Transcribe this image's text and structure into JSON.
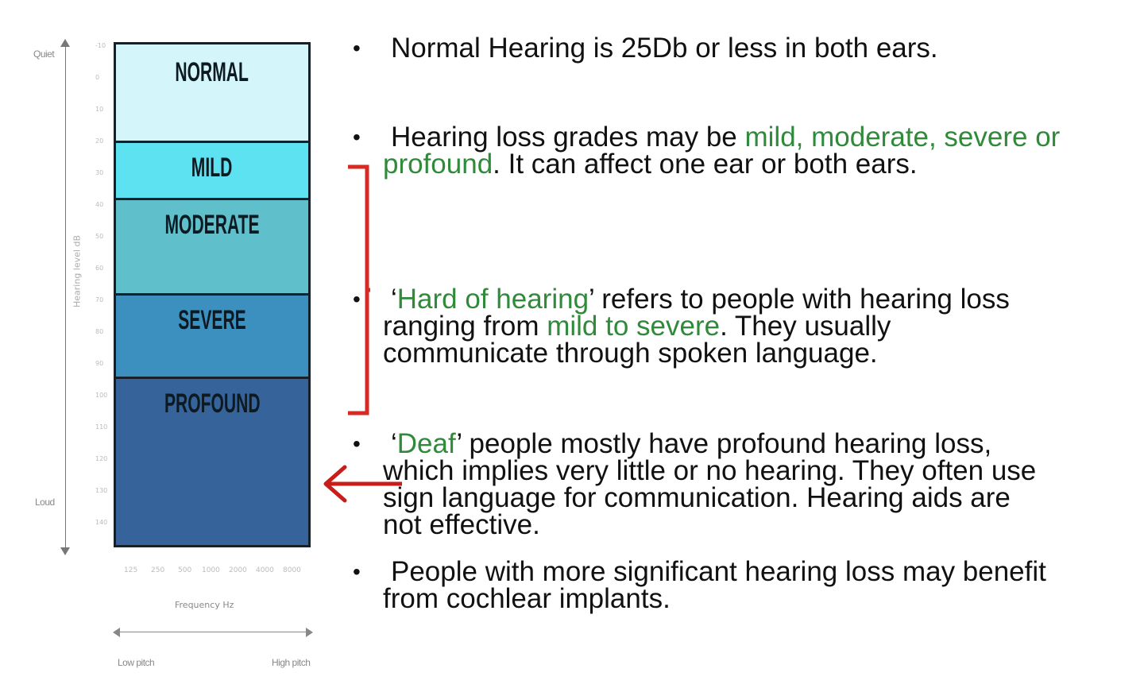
{
  "figure": {
    "quiet_label": "Quiet",
    "loud_label": "Loud",
    "y_axis_title": "Hearing level dB",
    "y_ticks": [
      "-10",
      "0",
      "10",
      "20",
      "30",
      "40",
      "50",
      "60",
      "70",
      "80",
      "90",
      "100",
      "110",
      "120",
      "130",
      "140"
    ],
    "bands": [
      {
        "label": "NORMAL",
        "color": "#d4f6fb"
      },
      {
        "label": "MILD",
        "color": "#5ce2f1"
      },
      {
        "label": "MODERATE",
        "color": "#5fbfca"
      },
      {
        "label": "SEVERE",
        "color": "#3b90c0"
      },
      {
        "label": "PROFOUND",
        "color": "#35639a"
      }
    ],
    "x_ticks": [
      "125",
      "250",
      "500",
      "1000",
      "2000",
      "4000",
      "8000"
    ],
    "x_axis_title": "Frequency Hz",
    "low_pitch": "Low pitch",
    "high_pitch": "High pitch"
  },
  "bullets": {
    "b1": {
      "text": "Normal Hearing is  25Db or less in both ears."
    },
    "b2": {
      "line1_pre": "Hearing loss grades may be ",
      "line1_green": "mild, moderate, severe or",
      "line2_green": "profound",
      "line2_post": ". It can affect one ear or both ears."
    },
    "b3": {
      "line1_open": "‘",
      "line1_green": "Hard of hearing",
      "line1_post": "’ refers to people with hearing loss",
      "line2_pre": "ranging from ",
      "line2_green": "mild to severe",
      "line2_post": ". They usually",
      "line3": "communicate through spoken language."
    },
    "b4": {
      "line1_open": "‘",
      "line1_green": "Deaf",
      "line1_post": "’ people mostly have profound hearing loss,",
      "line2": "which implies very little or no hearing. They often use",
      "line3": "sign language for communication. Hearing aids are",
      "line4": "not effective."
    },
    "b5": {
      "line1": "People with more significant hearing loss may benefit",
      "line2": "from cochlear implants."
    },
    "bullet_char": "•"
  },
  "colors": {
    "green_text": "#2f8a3a",
    "annotation_red": "#d62a22"
  }
}
